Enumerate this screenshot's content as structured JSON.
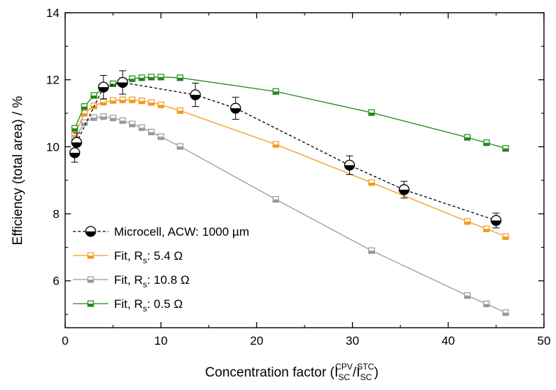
{
  "chart_data": {
    "type": "line",
    "xlabel": {
      "base": "Concentration factor (I",
      "sub1": "SC",
      "sup1": "CPV",
      "slash": "/I",
      "sub2": "SC",
      "sup2": "STC",
      "tail": ")"
    },
    "ylabel": "Efficiency (total area) / %",
    "xlim": [
      0,
      50
    ],
    "ylim": [
      4.6,
      14
    ],
    "x_ticks": [
      0,
      10,
      20,
      30,
      40,
      50
    ],
    "y_ticks": [
      6,
      8,
      10,
      12,
      14
    ],
    "grid": false,
    "legend_position": "bottom-left",
    "series": [
      {
        "name": "Microcell, ACW: 1000 µm",
        "style": "dashed-circle-errorbars",
        "color": "#000000",
        "legend": {
          "main": "Microcell, ACW: 1000 µm",
          "sub": "",
          "tail": ""
        },
        "x": [
          1.0,
          1.2,
          4.0,
          6.0,
          13.6,
          17.8,
          29.7,
          35.4,
          45.0
        ],
        "y": [
          9.82,
          10.13,
          11.78,
          11.92,
          11.55,
          11.15,
          9.45,
          8.72,
          7.8
        ],
        "err": [
          0.28,
          0.28,
          0.35,
          0.35,
          0.35,
          0.33,
          0.28,
          0.25,
          0.22
        ]
      },
      {
        "name": "Fit, Rs: 5.4 Ω",
        "style": "line-square",
        "color": "#f39a1e",
        "legend": {
          "main": "Fit, R",
          "sub": "s",
          "tail": ": 5.4 Ω"
        },
        "x": [
          1,
          2,
          3,
          4,
          5,
          6,
          7,
          8,
          9,
          10,
          12,
          22,
          32,
          42,
          44,
          46
        ],
        "y": [
          10.35,
          11.0,
          11.22,
          11.33,
          11.38,
          11.4,
          11.4,
          11.37,
          11.32,
          11.25,
          11.08,
          10.07,
          8.93,
          7.77,
          7.55,
          7.32
        ]
      },
      {
        "name": "Fit, Rs: 10.8 Ω",
        "style": "line-square",
        "color": "#999999",
        "legend": {
          "main": "Fit, R",
          "sub": "s",
          "tail": ": 10.8 Ω"
        },
        "x": [
          1,
          2,
          3,
          4,
          5,
          6,
          7,
          8,
          9,
          10,
          12,
          22,
          32,
          42,
          44,
          46
        ],
        "y": [
          10.22,
          10.72,
          10.87,
          10.9,
          10.86,
          10.78,
          10.68,
          10.57,
          10.44,
          10.3,
          10.01,
          8.43,
          6.9,
          5.56,
          5.31,
          5.05
        ]
      },
      {
        "name": "Fit, Rs: 0.5 Ω",
        "style": "line-square",
        "color": "#1f8a16",
        "legend": {
          "main": "Fit, R",
          "sub": "s",
          "tail": ": 0.5 Ω"
        },
        "x": [
          1,
          2,
          3,
          4,
          5,
          6,
          7,
          8,
          9,
          10,
          12,
          22,
          32,
          42,
          44,
          46
        ],
        "y": [
          10.55,
          11.2,
          11.53,
          11.75,
          11.88,
          11.97,
          12.03,
          12.06,
          12.08,
          12.08,
          12.06,
          11.65,
          11.02,
          10.28,
          10.12,
          9.95
        ]
      }
    ]
  }
}
